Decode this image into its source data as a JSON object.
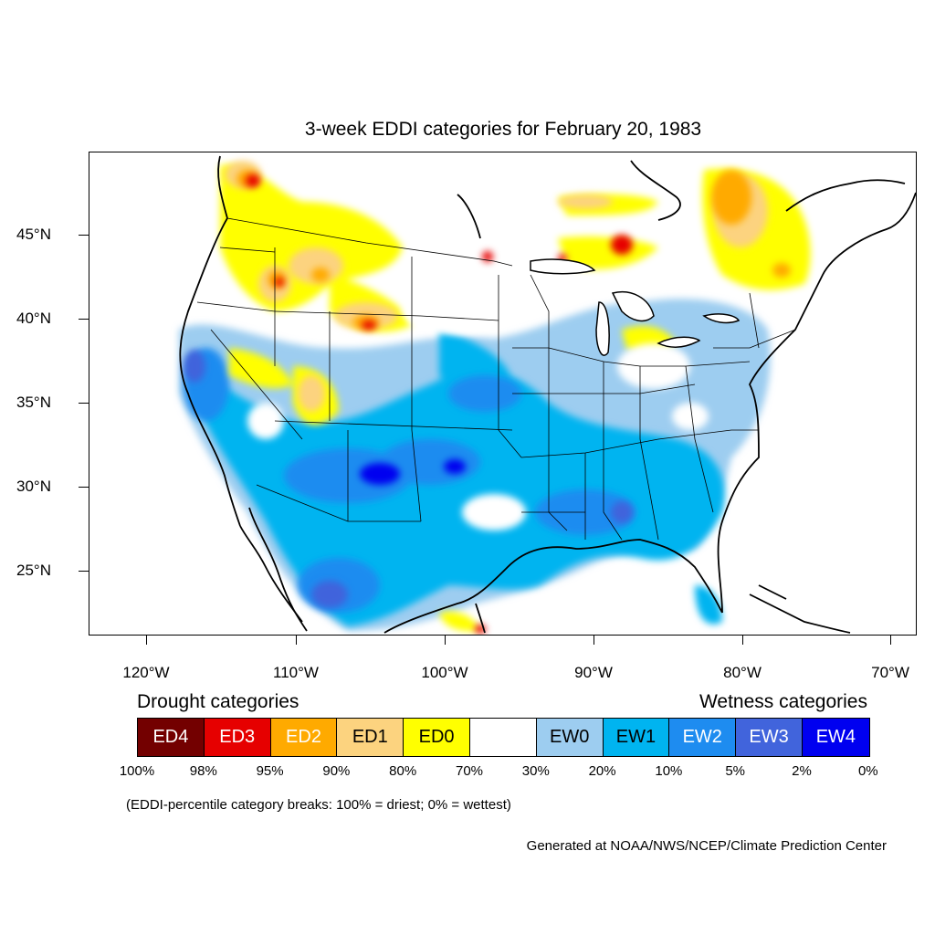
{
  "title": "3-week EDDI categories for February 20, 1983",
  "map": {
    "latitude_labels": [
      "45°N",
      "40°N",
      "35°N",
      "30°N",
      "25°N"
    ],
    "longitude_labels": [
      "120°W",
      "110°W",
      "100°W",
      "90°W",
      "80°W",
      "70°W"
    ]
  },
  "legend": {
    "drought_heading": "Drought categories",
    "wetness_heading": "Wetness categories",
    "categories": [
      {
        "label": "ED4",
        "color": "#730000",
        "text_color": "#ffffff"
      },
      {
        "label": "ED3",
        "color": "#e60000",
        "text_color": "#ffffff"
      },
      {
        "label": "ED2",
        "color": "#ffaa00",
        "text_color": "#ffffff"
      },
      {
        "label": "ED1",
        "color": "#fcd37f",
        "text_color": "#000000"
      },
      {
        "label": "ED0",
        "color": "#ffff00",
        "text_color": "#000000"
      },
      {
        "label": "",
        "color": "#ffffff",
        "text_color": "#000000"
      },
      {
        "label": "EW0",
        "color": "#9dcdf0",
        "text_color": "#000000"
      },
      {
        "label": "EW1",
        "color": "#00b4f0",
        "text_color": "#000000"
      },
      {
        "label": "EW2",
        "color": "#1e8cf0",
        "text_color": "#ffffff"
      },
      {
        "label": "EW3",
        "color": "#4164dc",
        "text_color": "#ffffff"
      },
      {
        "label": "EW4",
        "color": "#0000f0",
        "text_color": "#ffffff"
      }
    ],
    "percentiles": [
      "100%",
      "98%",
      "95%",
      "90%",
      "80%",
      "70%",
      "30%",
      "20%",
      "10%",
      "5%",
      "2%",
      "0%"
    ]
  },
  "note": "(EDDI-percentile category breaks: 100% = driest; 0% = wettest)",
  "credit": "Generated at NOAA/NWS/NCEP/Climate Prediction Center"
}
